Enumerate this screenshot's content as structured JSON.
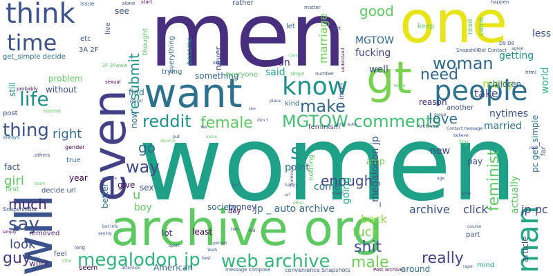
{
  "words": [
    {
      "text": "women",
      "color": "#1fa187",
      "vertical": false
    },
    {
      "text": "men",
      "color": "#472f7d",
      "vertical": false
    },
    {
      "text": "one",
      "color": "#e7e419",
      "vertical": false
    },
    {
      "text": "archive org",
      "color": "#5ec962",
      "vertical": false
    },
    {
      "text": "will",
      "color": "#3b528b",
      "vertical": true
    },
    {
      "text": "even",
      "color": "#424086",
      "vertical": true
    },
    {
      "text": "want",
      "color": "#2c728e",
      "vertical": false
    },
    {
      "text": "gt",
      "color": "#7ad151",
      "vertical": false
    },
    {
      "text": "think",
      "color": "#3b528b",
      "vertical": false
    },
    {
      "text": "people",
      "color": "#2c728e",
      "vertical": false
    },
    {
      "text": "know",
      "color": "#21918c",
      "vertical": false
    },
    {
      "text": "time",
      "color": "#3b528b",
      "vertical": false
    },
    {
      "text": "man",
      "color": "#22a884",
      "vertical": true
    },
    {
      "text": "woman",
      "color": "#31688e",
      "vertical": false
    },
    {
      "text": "life",
      "color": "#21918c",
      "vertical": false
    },
    {
      "text": "make",
      "color": "#31688e",
      "vertical": false
    },
    {
      "text": "MGTOW comments",
      "color": "#42be71",
      "vertical": false
    },
    {
      "text": "reddit",
      "color": "#21918c",
      "vertical": false
    },
    {
      "text": "female",
      "color": "#5ec962",
      "vertical": false
    },
    {
      "text": "megalodon jp",
      "color": "#2fb47c",
      "vertical": false
    },
    {
      "text": "web archive",
      "color": "#35b779",
      "vertical": false
    },
    {
      "text": "thing",
      "color": "#3b528b",
      "vertical": false
    },
    {
      "text": "say",
      "color": "#3b528b",
      "vertical": false
    },
    {
      "text": "way",
      "color": "#3e4989",
      "vertical": false
    },
    {
      "text": "s",
      "color": "#21918c",
      "vertical": false
    },
    {
      "text": "go",
      "color": "#31688e",
      "vertical": false
    },
    {
      "text": "guy",
      "color": "#443983",
      "vertical": false
    },
    {
      "text": "feminist",
      "color": "#5ec962",
      "vertical": true
    },
    {
      "text": "really",
      "color": "#414487",
      "vertical": false
    },
    {
      "text": "shit",
      "color": "#3b528b",
      "vertical": false
    },
    {
      "text": "male",
      "color": "#6ece58",
      "vertical": false
    },
    {
      "text": "good",
      "color": "#5ec962",
      "vertical": false
    },
    {
      "text": "need",
      "color": "#31688e",
      "vertical": false
    },
    {
      "text": "love",
      "color": "#2c728e",
      "vertical": false
    },
    {
      "text": "resubmit",
      "color": "#21918c",
      "vertical": true
    },
    {
      "text": "much",
      "color": "#482878",
      "vertical": false
    },
    {
      "text": "right",
      "color": "#31688e",
      "vertical": false
    },
    {
      "text": "girl",
      "color": "#5ec962",
      "vertical": false
    },
    {
      "text": "look",
      "color": "#3e4989",
      "vertical": false
    },
    {
      "text": "enough",
      "color": "#3e4989",
      "vertical": false
    },
    {
      "text": "archive",
      "color": "#3b528b",
      "vertical": false
    },
    {
      "text": "click",
      "color": "#3e4989",
      "vertical": false
    },
    {
      "text": "jp pc",
      "color": "#414487",
      "vertical": false
    },
    {
      "text": "fuck",
      "color": "#7ad151",
      "vertical": false
    },
    {
      "text": "back",
      "color": "#90d743",
      "vertical": false
    },
    {
      "text": "many",
      "color": "#a5db36",
      "vertical": false
    },
    {
      "text": "married",
      "color": "#2c728e",
      "vertical": false
    },
    {
      "text": "nytimes",
      "color": "#3b528b",
      "vertical": false
    },
    {
      "text": "marriage",
      "color": "#6ece58",
      "vertical": true
    },
    {
      "text": "MGTOW",
      "color": "#31688e",
      "vertical": false
    },
    {
      "text": "fucking",
      "color": "#3e4989",
      "vertical": false
    },
    {
      "text": "well",
      "color": "#3b528b",
      "vertical": false
    },
    {
      "text": "mean",
      "color": "#482878",
      "vertical": false
    },
    {
      "text": "said",
      "color": "#22a884",
      "vertical": false
    },
    {
      "text": "take",
      "color": "#3e4989",
      "vertical": false
    },
    {
      "text": "getting",
      "color": "#21918c",
      "vertical": false
    },
    {
      "text": "less",
      "color": "#3b528b",
      "vertical": false
    },
    {
      "text": "world",
      "color": "#2fb47c",
      "vertical": true
    },
    {
      "text": "children",
      "color": "#31688e",
      "vertical": false
    },
    {
      "text": "reason",
      "color": "#472f7d",
      "vertical": false
    },
    {
      "text": "new",
      "color": "#414487",
      "vertical": false
    },
    {
      "text": "pay",
      "color": "#3b528b",
      "vertical": false
    },
    {
      "text": "point",
      "color": "#2c728e",
      "vertical": false
    },
    {
      "text": "come",
      "color": "#2c728e",
      "vertical": false
    },
    {
      "text": "going",
      "color": "#22a884",
      "vertical": true
    },
    {
      "text": "actually",
      "color": "#5ec962",
      "vertical": true
    },
    {
      "text": "amp",
      "color": "#6ece58",
      "vertical": false
    },
    {
      "text": "jp _ auto archive",
      "color": "#31688e",
      "vertical": false
    },
    {
      "text": "_megalodon jp",
      "color": "#3b528b",
      "vertical": true
    },
    {
      "text": "money",
      "color": "#414487",
      "vertical": false
    },
    {
      "text": "society",
      "color": "#31688e",
      "vertical": false
    },
    {
      "text": "boy",
      "color": "#5ec962",
      "vertical": false
    },
    {
      "text": "sex",
      "color": "#3b528b",
      "vertical": false
    },
    {
      "text": "give",
      "color": "#440154",
      "vertical": false
    },
    {
      "text": "year",
      "color": "#440154",
      "vertical": false
    },
    {
      "text": "fact",
      "color": "#3b528b",
      "vertical": false
    },
    {
      "text": "true",
      "color": "#31688e",
      "vertical": false
    },
    {
      "text": "problem",
      "color": "#5ec962",
      "vertical": false
    },
    {
      "text": "without",
      "color": "#3b528b",
      "vertical": false
    },
    {
      "text": "still",
      "color": "#21918c",
      "vertical": true
    },
    {
      "text": "post",
      "color": "#3b528b",
      "vertical": false
    },
    {
      "text": "work",
      "color": "#472f7d",
      "vertical": false
    },
    {
      "text": "removed",
      "color": "#482878",
      "vertical": false
    },
    {
      "text": "better",
      "color": "#2c728e",
      "vertical": true
    },
    {
      "text": "lot",
      "color": "#443983",
      "vertical": false
    },
    {
      "text": "least",
      "color": "#440154",
      "vertical": false
    },
    {
      "text": "day",
      "color": "#440154",
      "vertical": false
    },
    {
      "text": "part",
      "color": "#3b528b",
      "vertical": false
    },
    {
      "text": "mind",
      "color": "#22a884",
      "vertical": false
    },
    {
      "text": "around",
      "color": "#2c728e",
      "vertical": false
    },
    {
      "text": "never",
      "color": "#3b528b",
      "vertical": true
    },
    {
      "text": "something",
      "color": "#31688e",
      "vertical": false
    },
    {
      "text": "everyone",
      "color": "#5ec962",
      "vertical": false
    },
    {
      "text": "trying",
      "color": "#31688e",
      "vertical": false
    },
    {
      "text": "find",
      "color": "#2c728e",
      "vertical": false
    },
    {
      "text": "now",
      "color": "#31688e",
      "vertical": true
    },
    {
      "text": "u",
      "color": "#5ec962",
      "vertical": false
    },
    {
      "text": "see",
      "color": "#3b528b",
      "vertical": false
    },
    {
      "text": "etc",
      "color": "#3b528b",
      "vertical": false
    },
    {
      "text": "live",
      "color": "#3b528b",
      "vertical": true
    },
    {
      "text": "thought",
      "color": "#5ec962",
      "vertical": true
    },
    {
      "text": "everything",
      "color": "#31688e",
      "vertical": true
    },
    {
      "text": "become",
      "color": "#21918c",
      "vertical": true
    },
    {
      "text": "rather",
      "color": "#3b528b",
      "vertical": false
    },
    {
      "text": "let",
      "color": "#31688e",
      "vertical": false
    },
    {
      "text": "kind",
      "color": "#2c728e",
      "vertical": false
    },
    {
      "text": "incel",
      "color": "#3b528b",
      "vertical": true
    },
    {
      "text": "feminism",
      "color": "#3b528b",
      "vertical": false
    },
    {
      "text": "nothing",
      "color": "#5ec962",
      "vertical": true
    },
    {
      "text": "another",
      "color": "#3b528b",
      "vertical": false
    },
    {
      "text": "pc get_simple",
      "color": "#2c728e",
      "vertical": true
    },
    {
      "text": "article",
      "color": "#3b528b",
      "vertical": true
    },
    {
      "text": "far",
      "color": "#3b528b",
      "vertical": true
    },
    {
      "text": "try",
      "color": "#5ec962",
      "vertical": false
    },
    {
      "text": "keep",
      "color": "#5ec962",
      "vertical": false
    },
    {
      "text": "read",
      "color": "#5ec962",
      "vertical": true
    },
    {
      "text": "came",
      "color": "#5ec962",
      "vertical": true
    },
    {
      "text": "issue",
      "color": "#31688e",
      "vertical": false
    },
    {
      "text": "alone",
      "color": "#3b528b",
      "vertical": false
    },
    {
      "text": "start",
      "color": "#440154",
      "vertical": false
    },
    {
      "text": "matter",
      "color": "#3b528b",
      "vertical": false
    },
    {
      "text": "happen",
      "color": "#3b528b",
      "vertical": false
    },
    {
      "text": "3A 2F",
      "color": "#3b528b",
      "vertical": false
    },
    {
      "text": "2F 2Fwww",
      "color": "#5ec962",
      "vertical": false
    },
    {
      "text": "sexual",
      "color": "#440154",
      "vertical": false
    },
    {
      "text": "get_simple decide",
      "color": "#2c728e",
      "vertical": false
    },
    {
      "text": "probably",
      "color": "#440154",
      "vertical": false
    },
    {
      "text": "instead",
      "color": "#5ec962",
      "vertical": false
    },
    {
      "text": "always",
      "color": "#2c728e",
      "vertical": false
    },
    {
      "text": "gender",
      "color": "#440154",
      "vertical": false
    },
    {
      "text": "others",
      "color": "#3b528b",
      "vertical": false
    },
    {
      "text": "team",
      "color": "#5ec962",
      "vertical": false
    },
    {
      "text": "first",
      "color": "#5ec962",
      "vertical": false
    },
    {
      "text": "decide url",
      "color": "#3b528b",
      "vertical": false
    },
    {
      "text": "SnapshillBot",
      "color": "#3b528b",
      "vertical": false
    },
    {
      "text": "simply",
      "color": "#440154",
      "vertical": false
    },
    {
      "text": "lol",
      "color": "#3b528b",
      "vertical": false
    },
    {
      "text": "feel",
      "color": "#3b528b",
      "vertical": false
    },
    {
      "text": "seem",
      "color": "#440154",
      "vertical": false
    },
    {
      "text": "long",
      "color": "#3b528b",
      "vertical": false
    },
    {
      "text": "little",
      "color": "#5ec962",
      "vertical": false
    },
    {
      "text": "attention",
      "color": "#3b528b",
      "vertical": false
    },
    {
      "text": "American",
      "color": "#31688e",
      "vertical": false
    },
    {
      "text": "message compose",
      "color": "#3b528b",
      "vertical": false
    },
    {
      "text": "convenience Snapshots",
      "color": "#3b528b",
      "vertical": false
    },
    {
      "text": "Post archive",
      "color": "#440154",
      "vertical": false
    },
    {
      "text": "sure",
      "color": "#3b528b",
      "vertical": false
    },
    {
      "text": "single",
      "color": "#5ec962",
      "vertical": false
    },
    {
      "text": "number",
      "color": "#3b528b",
      "vertical": false
    },
    {
      "text": "care",
      "color": "#5ec962",
      "vertical": false
    },
    {
      "text": "understand",
      "color": "#440154",
      "vertical": true
    },
    {
      "text": "yet",
      "color": "#3b528b",
      "vertical": false
    },
    {
      "text": "white",
      "color": "#5ec962",
      "vertical": false
    },
    {
      "text": "D9 D8",
      "color": "#3b528b",
      "vertical": false
    },
    {
      "text": "SnapshillBot Contact",
      "color": "#3b528b",
      "vertical": false
    },
    {
      "text": "agree",
      "color": "#3b528b",
      "vertical": false
    },
    {
      "text": "html",
      "color": "#3b528b",
      "vertical": false
    },
    {
      "text": "group",
      "color": "#3b528b",
      "vertical": false
    },
    {
      "text": "Archived",
      "color": "#3b528b",
      "vertical": false
    },
    {
      "text": "Contact message",
      "color": "#3b528b",
      "vertical": false
    },
    {
      "text": "believe",
      "color": "#3b528b",
      "vertical": false
    },
    {
      "text": "error auto",
      "color": "#3b528b",
      "vertical": false
    },
    {
      "text": "real",
      "color": "#3b528b",
      "vertical": false
    },
    {
      "text": "stop",
      "color": "#3b528b",
      "vertical": false
    },
    {
      "text": "age",
      "color": "#3b528b",
      "vertical": false
    },
    {
      "text": "course",
      "color": "#3b528b",
      "vertical": false
    },
    {
      "text": "rape",
      "color": "#3b528b",
      "vertical": false
    },
    {
      "text": "might",
      "color": "#3b528b",
      "vertical": false
    },
    {
      "text": "url",
      "color": "#3b528b",
      "vertical": false
    },
    {
      "text": "happy",
      "color": "#3b528b",
      "vertical": false
    },
    {
      "text": "player",
      "color": "#3b528b",
      "vertical": false
    },
    {
      "text": "put",
      "color": "#3b528b",
      "vertical": false
    },
    {
      "text": "value",
      "color": "#5ec962",
      "vertical": false
    },
    {
      "text": "divorce",
      "color": "#5ec962",
      "vertical": false
    },
    {
      "text": "place",
      "color": "#3b528b",
      "vertical": false
    },
    {
      "text": "don t",
      "color": "#3b528b",
      "vertical": false
    },
    {
      "text": "Yes",
      "color": "#3b528b",
      "vertical": false
    },
    {
      "text": "_archive",
      "color": "#3b528b",
      "vertical": false
    },
    {
      "text": "bot Info",
      "color": "#3b528b",
      "vertical": false
    },
    {
      "text": "saying",
      "color": "#3b528b",
      "vertical": false
    },
    {
      "text": "sport",
      "color": "#3b528b",
      "vertical": false
    },
    {
      "text": "person",
      "color": "#3b528b",
      "vertical": false
    },
    {
      "text": "Yeah",
      "color": "#3b528b",
      "vertical": false
    },
    {
      "text": "best",
      "color": "#3b528b",
      "vertical": false
    },
    {
      "text": "old",
      "color": "#3b528b",
      "vertical": false
    },
    {
      "text": "two",
      "color": "#3b528b",
      "vertical": false
    },
    {
      "text": "bot",
      "color": "#3b528b",
      "vertical": false
    },
    {
      "text": "other",
      "color": "#5ec962",
      "vertical": false
    },
    {
      "text": "Someone",
      "color": "#3b528b",
      "vertical": true
    },
    {
      "text": "Like",
      "color": "#3b528b",
      "vertical": false
    }
  ]
}
